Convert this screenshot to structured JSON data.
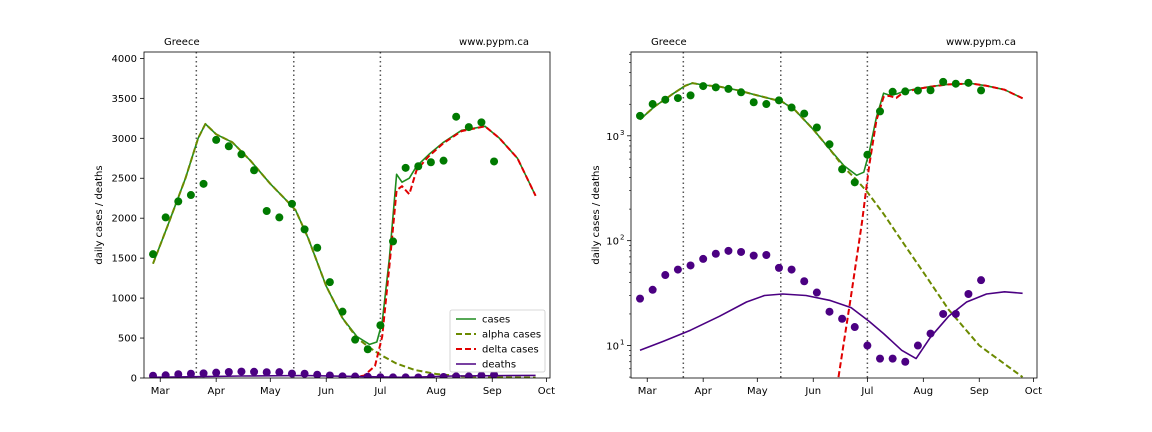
{
  "chart_data": [
    {
      "type": "line",
      "title": "Greece",
      "annotation": "www.pypm.ca",
      "ylabel": "daily cases / deaths",
      "yscale": "linear",
      "xlim": [
        "2021-02-20",
        "2021-10-03"
      ],
      "ylim": [
        0,
        4080
      ],
      "xticks": [
        {
          "date": "2021-03-01",
          "label": "Mar"
        },
        {
          "date": "2021-04-01",
          "label": "Apr"
        },
        {
          "date": "2021-05-01",
          "label": "May"
        },
        {
          "date": "2021-06-01",
          "label": "Jun"
        },
        {
          "date": "2021-07-01",
          "label": "Jul"
        },
        {
          "date": "2021-08-01",
          "label": "Aug"
        },
        {
          "date": "2021-09-01",
          "label": "Sep"
        },
        {
          "date": "2021-10-01",
          "label": "Oct"
        }
      ],
      "yticks": [
        0,
        500,
        1000,
        1500,
        2000,
        2500,
        3000,
        3500,
        4000
      ],
      "vlines": [
        "2021-03-21",
        "2021-05-14",
        "2021-07-01"
      ],
      "legend": {
        "placement": "lower-right",
        "entries": [
          "cases",
          "alpha cases",
          "delta cases",
          "deaths"
        ]
      },
      "series": [
        {
          "name": "cases",
          "style": "solid",
          "color": "#1e8c1e",
          "x": [
            "2021-02-25",
            "2021-03-05",
            "2021-03-15",
            "2021-03-22",
            "2021-03-26",
            "2021-04-01",
            "2021-04-10",
            "2021-04-20",
            "2021-05-01",
            "2021-05-10",
            "2021-05-15",
            "2021-05-22",
            "2021-06-01",
            "2021-06-10",
            "2021-06-18",
            "2021-06-25",
            "2021-06-29",
            "2021-07-02",
            "2021-07-06",
            "2021-07-10",
            "2021-07-13",
            "2021-07-17",
            "2021-07-21",
            "2021-07-28",
            "2021-08-05",
            "2021-08-15",
            "2021-08-28",
            "2021-09-05",
            "2021-09-15",
            "2021-09-25"
          ],
          "y": [
            1430,
            1900,
            2500,
            3000,
            3180,
            3050,
            2950,
            2720,
            2430,
            2220,
            2100,
            1750,
            1150,
            750,
            520,
            420,
            450,
            700,
            1500,
            2550,
            2450,
            2500,
            2650,
            2800,
            2950,
            3100,
            3150,
            3000,
            2750,
            2280
          ]
        },
        {
          "name": "alpha cases",
          "style": "dashed",
          "color": "#6b8a00",
          "x": [
            "2021-02-25",
            "2021-03-05",
            "2021-03-15",
            "2021-03-22",
            "2021-03-26",
            "2021-04-01",
            "2021-04-10",
            "2021-04-20",
            "2021-05-01",
            "2021-05-10",
            "2021-05-15",
            "2021-05-22",
            "2021-06-01",
            "2021-06-10",
            "2021-06-18",
            "2021-06-25",
            "2021-07-01",
            "2021-07-10",
            "2021-07-20",
            "2021-08-01",
            "2021-08-15",
            "2021-09-01",
            "2021-09-25"
          ],
          "y": [
            1430,
            1900,
            2500,
            3000,
            3180,
            3050,
            2950,
            2720,
            2430,
            2220,
            2100,
            1750,
            1150,
            750,
            500,
            380,
            290,
            180,
            100,
            50,
            22,
            10,
            5
          ]
        },
        {
          "name": "delta cases",
          "style": "dashed",
          "color": "#e00000",
          "x": [
            "2021-06-15",
            "2021-06-22",
            "2021-06-28",
            "2021-07-02",
            "2021-07-06",
            "2021-07-10",
            "2021-07-13",
            "2021-07-17",
            "2021-07-21",
            "2021-07-28",
            "2021-08-05",
            "2021-08-15",
            "2021-08-28",
            "2021-09-05",
            "2021-09-15",
            "2021-09-25"
          ],
          "y": [
            5,
            30,
            150,
            520,
            1400,
            2350,
            2400,
            2300,
            2600,
            2780,
            2940,
            3090,
            3150,
            3000,
            2750,
            2280
          ]
        },
        {
          "name": "deaths",
          "style": "solid",
          "color": "#4b0082",
          "x": [
            "2021-02-25",
            "2021-04-15",
            "2021-05-20",
            "2021-06-20",
            "2021-07-15",
            "2021-08-10",
            "2021-09-25"
          ],
          "y": [
            9,
            25,
            31,
            18,
            8,
            25,
            32
          ]
        },
        {
          "name": "cases data",
          "type": "scatter",
          "color": "#007a00",
          "x": [
            "2021-02-25",
            "2021-03-04",
            "2021-03-11",
            "2021-03-18",
            "2021-03-25",
            "2021-04-01",
            "2021-04-08",
            "2021-04-15",
            "2021-04-22",
            "2021-04-29",
            "2021-05-06",
            "2021-05-13",
            "2021-05-20",
            "2021-05-27",
            "2021-06-03",
            "2021-06-10",
            "2021-06-17",
            "2021-06-24",
            "2021-07-01",
            "2021-07-08",
            "2021-07-15",
            "2021-07-22",
            "2021-07-29",
            "2021-08-05",
            "2021-08-12",
            "2021-08-19",
            "2021-08-26",
            "2021-09-02"
          ],
          "y": [
            1550,
            2010,
            2210,
            2290,
            2430,
            2980,
            2900,
            2800,
            2600,
            2090,
            2010,
            2180,
            1860,
            1630,
            1200,
            830,
            480,
            360,
            660,
            1710,
            2630,
            2650,
            2700,
            2720,
            3270,
            3140,
            3200,
            2710
          ]
        },
        {
          "name": "deaths data",
          "type": "scatter",
          "color": "#4b0082",
          "x": [
            "2021-02-25",
            "2021-03-04",
            "2021-03-11",
            "2021-03-18",
            "2021-03-25",
            "2021-04-01",
            "2021-04-08",
            "2021-04-15",
            "2021-04-22",
            "2021-04-29",
            "2021-05-06",
            "2021-05-13",
            "2021-05-20",
            "2021-05-27",
            "2021-06-03",
            "2021-06-10",
            "2021-06-17",
            "2021-06-24",
            "2021-07-01",
            "2021-07-08",
            "2021-07-15",
            "2021-07-22",
            "2021-07-29",
            "2021-08-05",
            "2021-08-12",
            "2021-08-19",
            "2021-08-26",
            "2021-09-02"
          ],
          "y": [
            28,
            34,
            47,
            53,
            58,
            67,
            75,
            80,
            78,
            72,
            73,
            55,
            53,
            41,
            32,
            21,
            18,
            15,
            10,
            7.5,
            7.5,
            7,
            10,
            13,
            20,
            20,
            31,
            42
          ]
        }
      ]
    },
    {
      "type": "line",
      "title": "Greece",
      "annotation": "www.pypm.ca",
      "ylabel": "daily cases / deaths",
      "yscale": "log",
      "xlim": [
        "2021-02-20",
        "2021-10-03"
      ],
      "ylim": [
        4.9,
        6300
      ],
      "xticks": [
        {
          "date": "2021-03-01",
          "label": "Mar"
        },
        {
          "date": "2021-04-01",
          "label": "Apr"
        },
        {
          "date": "2021-05-01",
          "label": "May"
        },
        {
          "date": "2021-06-01",
          "label": "Jun"
        },
        {
          "date": "2021-07-01",
          "label": "Jul"
        },
        {
          "date": "2021-08-01",
          "label": "Aug"
        },
        {
          "date": "2021-09-01",
          "label": "Sep"
        },
        {
          "date": "2021-10-01",
          "label": "Oct"
        }
      ],
      "yticks_major": [
        {
          "value": 10,
          "base": "10",
          "exp": "1"
        },
        {
          "value": 100,
          "base": "10",
          "exp": "2"
        },
        {
          "value": 1000,
          "base": "10",
          "exp": "3"
        }
      ],
      "vlines": [
        "2021-03-21",
        "2021-05-14",
        "2021-07-01"
      ],
      "series": [
        {
          "name": "cases",
          "style": "solid",
          "color": "#1e8c1e",
          "x": [
            "2021-02-25",
            "2021-03-05",
            "2021-03-15",
            "2021-03-22",
            "2021-03-26",
            "2021-04-01",
            "2021-04-10",
            "2021-04-20",
            "2021-05-01",
            "2021-05-10",
            "2021-05-15",
            "2021-05-22",
            "2021-06-01",
            "2021-06-10",
            "2021-06-18",
            "2021-06-25",
            "2021-06-29",
            "2021-07-02",
            "2021-07-06",
            "2021-07-10",
            "2021-07-13",
            "2021-07-17",
            "2021-07-21",
            "2021-07-28",
            "2021-08-05",
            "2021-08-15",
            "2021-08-28",
            "2021-09-05",
            "2021-09-15",
            "2021-09-25"
          ],
          "y": [
            1430,
            1900,
            2500,
            3000,
            3180,
            3050,
            2950,
            2720,
            2430,
            2220,
            2100,
            1750,
            1150,
            750,
            520,
            420,
            450,
            700,
            1500,
            2550,
            2450,
            2500,
            2650,
            2800,
            2950,
            3100,
            3150,
            3000,
            2750,
            2280
          ]
        },
        {
          "name": "alpha cases",
          "style": "dashed",
          "color": "#6b8a00",
          "x": [
            "2021-02-25",
            "2021-03-05",
            "2021-03-15",
            "2021-03-22",
            "2021-03-26",
            "2021-04-01",
            "2021-04-10",
            "2021-04-20",
            "2021-05-01",
            "2021-05-10",
            "2021-05-15",
            "2021-05-22",
            "2021-06-01",
            "2021-06-10",
            "2021-06-18",
            "2021-06-25",
            "2021-07-01",
            "2021-07-10",
            "2021-07-20",
            "2021-08-01",
            "2021-08-15",
            "2021-09-01",
            "2021-09-25"
          ],
          "y": [
            1430,
            1900,
            2500,
            3000,
            3180,
            3050,
            2950,
            2720,
            2430,
            2220,
            2100,
            1750,
            1150,
            750,
            500,
            380,
            290,
            180,
            100,
            50,
            22,
            10,
            5
          ]
        },
        {
          "name": "delta cases",
          "style": "dashed",
          "color": "#e00000",
          "x": [
            "2021-06-15",
            "2021-06-22",
            "2021-06-28",
            "2021-07-02",
            "2021-07-06",
            "2021-07-10",
            "2021-07-13",
            "2021-07-17",
            "2021-07-21",
            "2021-07-28",
            "2021-08-05",
            "2021-08-15",
            "2021-08-28",
            "2021-09-05",
            "2021-09-15",
            "2021-09-25"
          ],
          "y": [
            5,
            30,
            150,
            520,
            1400,
            2350,
            2400,
            2300,
            2600,
            2780,
            2940,
            3090,
            3150,
            3000,
            2750,
            2280
          ]
        },
        {
          "name": "deaths",
          "style": "solid",
          "color": "#4b0082",
          "x": [
            "2021-02-25",
            "2021-03-10",
            "2021-03-25",
            "2021-04-10",
            "2021-04-25",
            "2021-05-05",
            "2021-05-15",
            "2021-05-28",
            "2021-06-10",
            "2021-06-22",
            "2021-07-02",
            "2021-07-10",
            "2021-07-20",
            "2021-07-28",
            "2021-08-05",
            "2021-08-15",
            "2021-08-25",
            "2021-09-05",
            "2021-09-15",
            "2021-09-25"
          ],
          "y": [
            9,
            11,
            14,
            19,
            26,
            30,
            31,
            30,
            27,
            23,
            17,
            13,
            9,
            7.5,
            12,
            19,
            26,
            31,
            32.5,
            31.5
          ]
        },
        {
          "name": "cases data",
          "type": "scatter",
          "color": "#007a00",
          "x": [
            "2021-02-25",
            "2021-03-04",
            "2021-03-11",
            "2021-03-18",
            "2021-03-25",
            "2021-04-01",
            "2021-04-08",
            "2021-04-15",
            "2021-04-22",
            "2021-04-29",
            "2021-05-06",
            "2021-05-13",
            "2021-05-20",
            "2021-05-27",
            "2021-06-03",
            "2021-06-10",
            "2021-06-17",
            "2021-06-24",
            "2021-07-01",
            "2021-07-08",
            "2021-07-15",
            "2021-07-22",
            "2021-07-29",
            "2021-08-05",
            "2021-08-12",
            "2021-08-19",
            "2021-08-26",
            "2021-09-02"
          ],
          "y": [
            1550,
            2010,
            2210,
            2290,
            2430,
            2980,
            2900,
            2800,
            2600,
            2090,
            2010,
            2180,
            1860,
            1630,
            1200,
            830,
            480,
            360,
            660,
            1710,
            2630,
            2650,
            2700,
            2720,
            3270,
            3140,
            3200,
            2710
          ]
        },
        {
          "name": "deaths data",
          "type": "scatter",
          "color": "#4b0082",
          "x": [
            "2021-02-25",
            "2021-03-04",
            "2021-03-11",
            "2021-03-18",
            "2021-03-25",
            "2021-04-01",
            "2021-04-08",
            "2021-04-15",
            "2021-04-22",
            "2021-04-29",
            "2021-05-06",
            "2021-05-13",
            "2021-05-20",
            "2021-05-27",
            "2021-06-03",
            "2021-06-10",
            "2021-06-17",
            "2021-06-24",
            "2021-07-01",
            "2021-07-08",
            "2021-07-15",
            "2021-07-22",
            "2021-07-29",
            "2021-08-05",
            "2021-08-12",
            "2021-08-19",
            "2021-08-26",
            "2021-09-02"
          ],
          "y": [
            28,
            34,
            47,
            53,
            58,
            67,
            75,
            80,
            78,
            72,
            73,
            55,
            53,
            41,
            32,
            21,
            18,
            15,
            10,
            7.5,
            7.5,
            7,
            10,
            13,
            20,
            20,
            31,
            42
          ]
        }
      ]
    }
  ]
}
